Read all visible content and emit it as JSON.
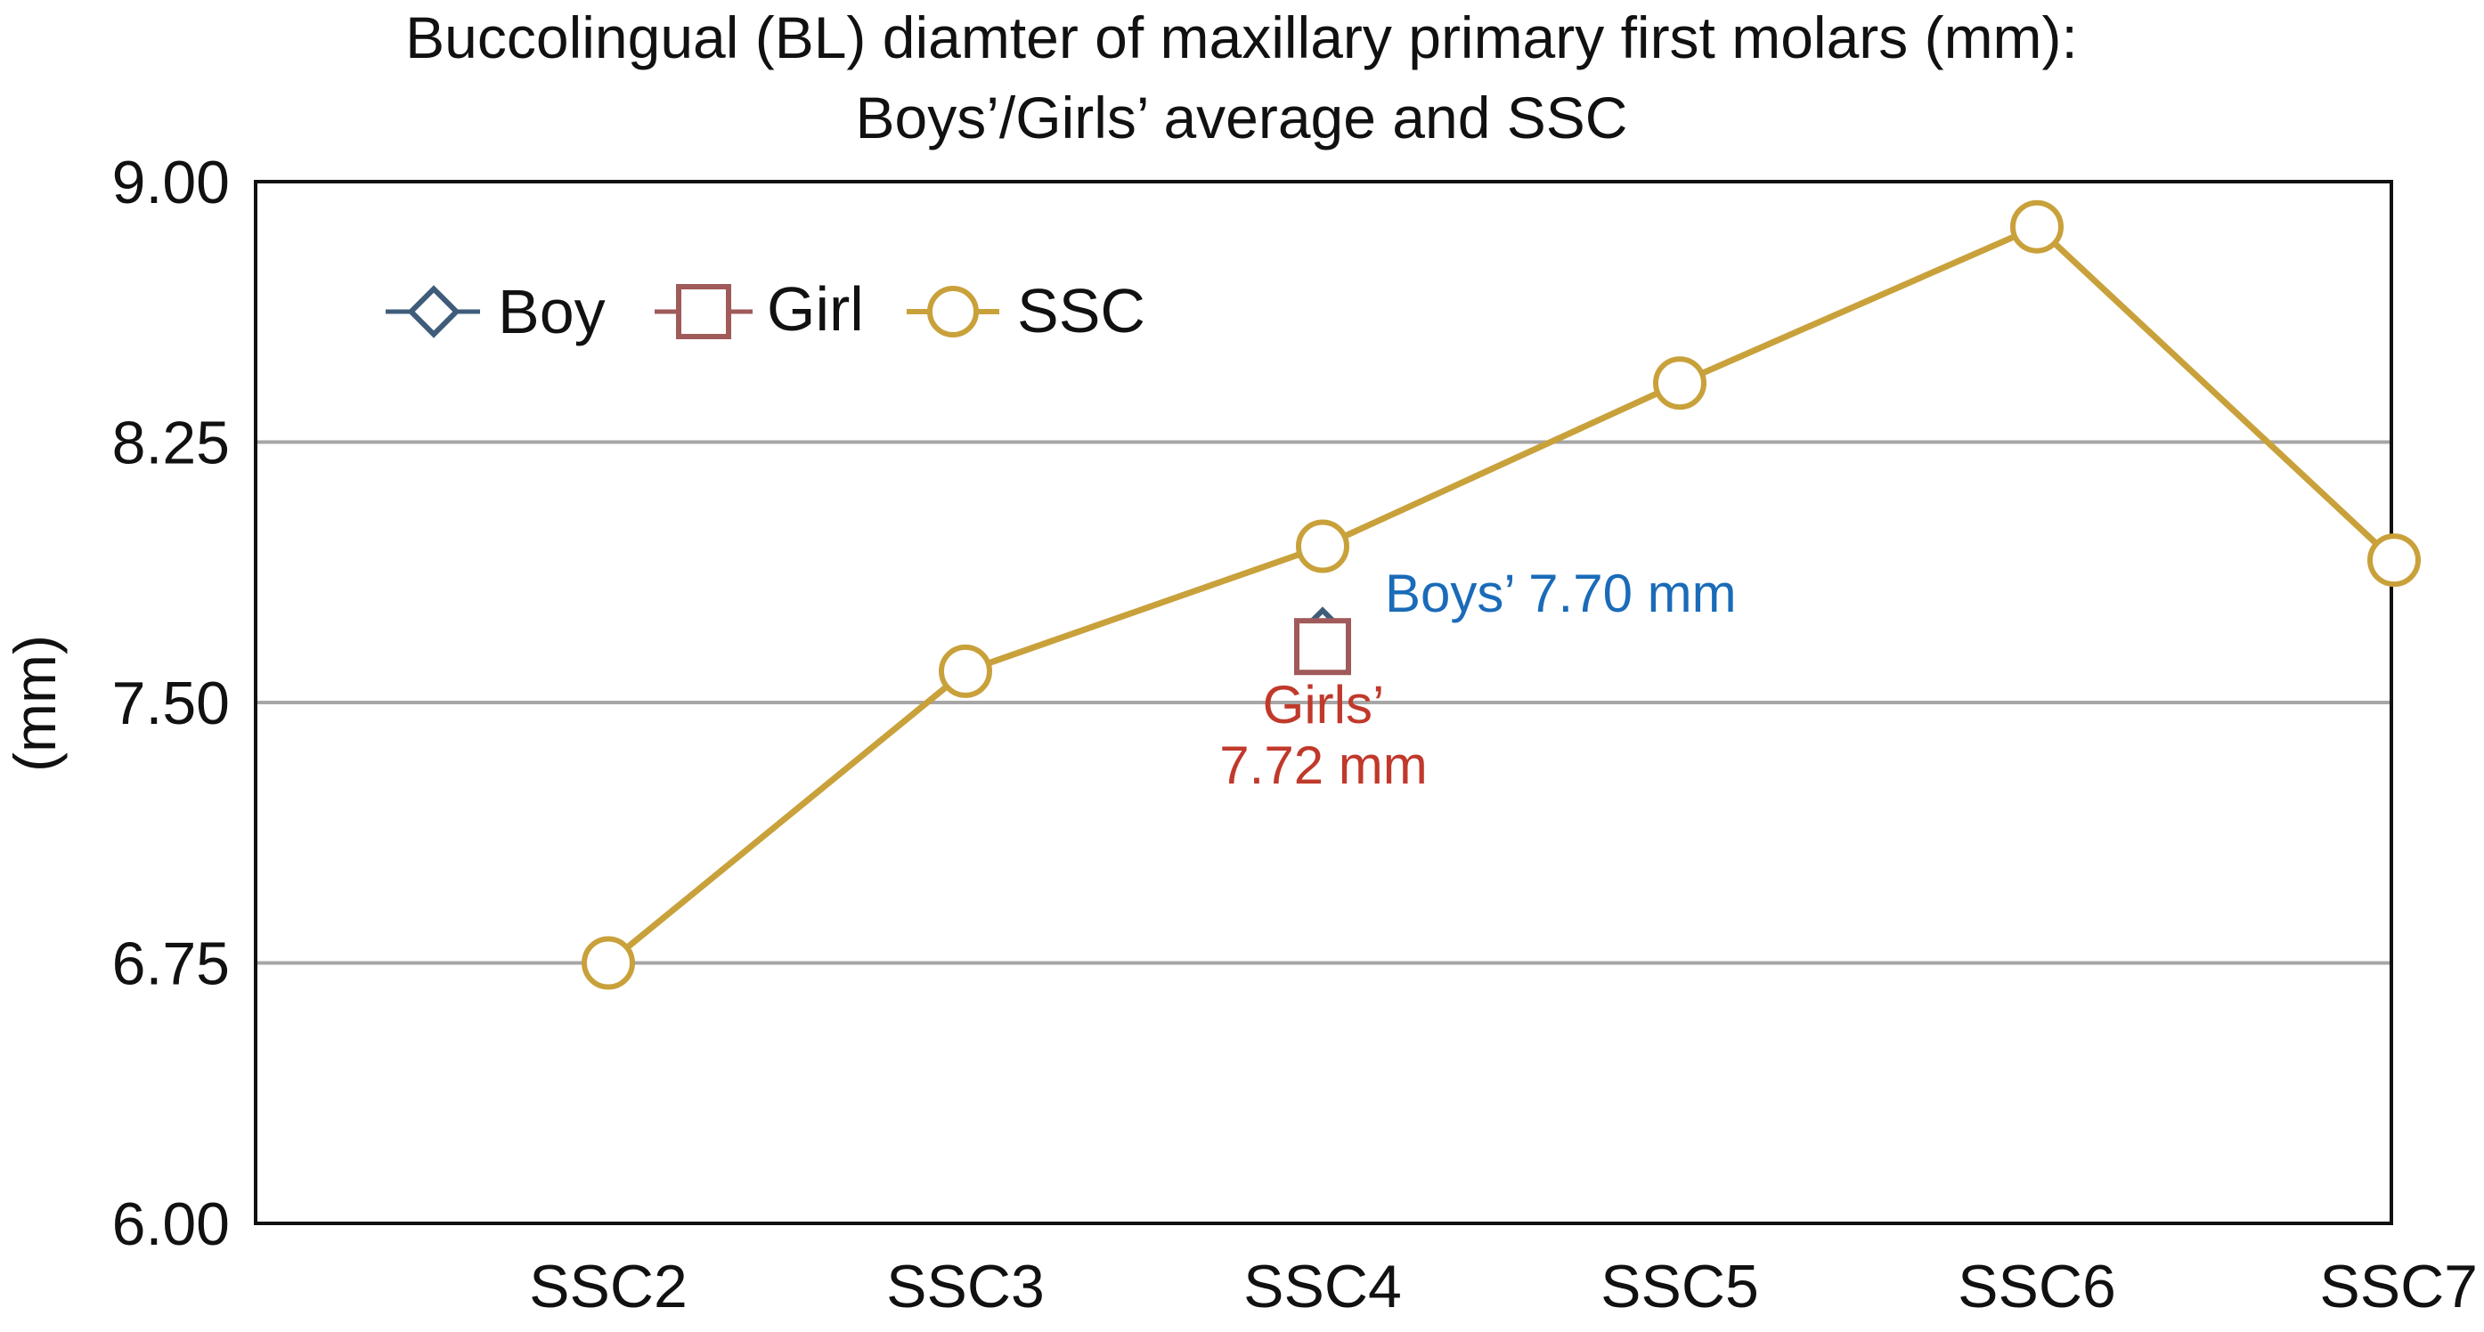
{
  "chart_data": {
    "type": "line",
    "title_lines": [
      "Buccolingual (BL) diamter of maxillary primary first molars (mm):",
      "Boys’/Girls’ average and SSC"
    ],
    "xlabel": "",
    "ylabel": "(mm)",
    "categories": [
      "SSC2",
      "SSC3",
      "SSC4",
      "SSC5",
      "SSC6",
      "SSC7"
    ],
    "ylim": [
      6.0,
      9.0
    ],
    "yticks": [
      "6.00",
      "6.75",
      "7.50",
      "8.25",
      "9.00"
    ],
    "ytick_values": [
      6.0,
      6.75,
      7.5,
      8.25,
      9.0
    ],
    "grid": "horizontal",
    "legend_position": "top-left",
    "series": [
      {
        "name": "Boy",
        "marker": "diamond",
        "color": "#3f5d7a",
        "points": [
          {
            "category": "SSC4",
            "value": 7.7
          }
        ]
      },
      {
        "name": "Girl",
        "marker": "square",
        "color": "#a05a5a",
        "points": [
          {
            "category": "SSC4",
            "value": 7.72
          }
        ]
      },
      {
        "name": "SSC",
        "marker": "circle",
        "color": "#c9a13b",
        "values": [
          6.75,
          7.59,
          7.95,
          8.42,
          8.87,
          7.91
        ]
      }
    ],
    "annotations": [
      {
        "text": "Boys’ 7.70 mm",
        "color": "#1a6bb8"
      },
      {
        "text": "Girls’",
        "color": "#c0392b"
      },
      {
        "text": "7.72 mm",
        "color": "#c0392b"
      }
    ]
  },
  "colors": {
    "axis": "#111111",
    "grid": "#a6a6a6",
    "background": "#ffffff"
  }
}
